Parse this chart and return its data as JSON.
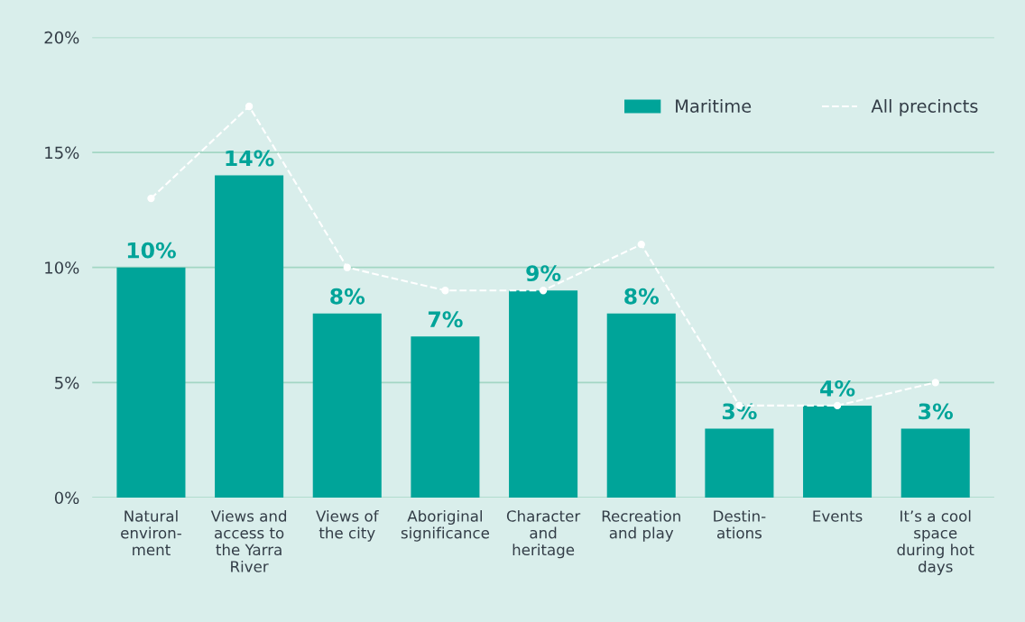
{
  "chart_data": {
    "type": "bar",
    "categories": [
      "Natural\nenviron-\nment",
      "Views and\naccess to\nthe Yarra\nRiver",
      "Views of\nthe city",
      "Aboriginal\nsignificance",
      "Character\nand\nheritage",
      "Recreation\nand play",
      "Destin-\nations",
      "Events",
      "It’s a cool\nspace\nduring hot\ndays"
    ],
    "series": [
      {
        "name": "Maritime",
        "color": "#00a499",
        "values": [
          10,
          14,
          8,
          7,
          9,
          8,
          3,
          4,
          3
        ],
        "value_labels": [
          "10%",
          "14%",
          "8%",
          "7%",
          "9%",
          "8%",
          "3%",
          "4%",
          "3%"
        ]
      },
      {
        "name": "All precincts",
        "type": "line",
        "color": "#ffffff",
        "marker": "circle",
        "line_style": "dashed",
        "values": [
          13,
          17,
          10,
          9,
          9,
          11,
          4,
          4,
          5
        ]
      }
    ],
    "ylim": [
      0,
      20
    ],
    "yticks": [
      {
        "value": 0,
        "label": "0%"
      },
      {
        "value": 5,
        "label": "5%"
      },
      {
        "value": 10,
        "label": "10%"
      },
      {
        "value": 15,
        "label": "15%"
      },
      {
        "value": 20,
        "label": "20%"
      }
    ],
    "grid": "y",
    "legend": "top right"
  }
}
